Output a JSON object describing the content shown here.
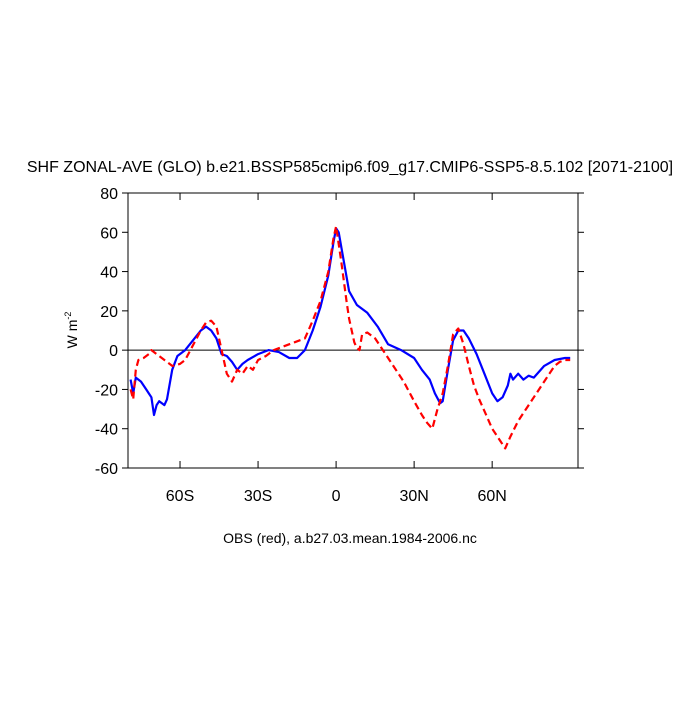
{
  "chart_data": {
    "type": "line",
    "title": "SHF ZONAL-AVE (GLO) b.e21.BSSP585cmip6.f09_g17.CMIP6-SSP5-8.5.102 [2071-2100]",
    "ylabel": {
      "base": "W m",
      "sup": "-2"
    },
    "footer": "OBS (red), a.b27.03.mean.1984-2006.nc",
    "xlim": [
      -80,
      93
    ],
    "ylim": [
      -60,
      80
    ],
    "xticks": [
      {
        "value": -60,
        "label": "60S"
      },
      {
        "value": -30,
        "label": "30S"
      },
      0,
      {
        "value": 30,
        "label": "30N"
      },
      {
        "value": 60,
        "label": "60N"
      }
    ],
    "yticks": [
      -60,
      -40,
      -20,
      0,
      20,
      40,
      60,
      80
    ],
    "hline": 0,
    "series": [
      {
        "color": "#0000ff",
        "dash": false,
        "x": [
          -79,
          -78,
          -77,
          -75,
          -73,
          -72,
          -71,
          -70,
          -69,
          -68,
          -66,
          -65,
          -63,
          -61,
          -58,
          -55,
          -52,
          -50,
          -48,
          -46,
          -44,
          -42,
          -40,
          -38,
          -36,
          -34,
          -30,
          -26,
          -22,
          -18,
          -15,
          -12,
          -9,
          -6,
          -3,
          -1,
          0,
          1,
          3,
          5,
          8,
          12,
          16,
          20,
          25,
          30,
          33,
          36,
          38,
          40,
          41,
          43,
          45,
          47,
          49,
          51,
          54,
          57,
          60,
          62,
          64,
          66,
          67,
          68,
          70,
          72,
          74,
          76,
          80,
          84,
          88,
          90
        ],
        "values": [
          -15,
          -22,
          -14,
          -16,
          -20,
          -22,
          -24,
          -33,
          -28,
          -26,
          -28,
          -25,
          -10,
          -3,
          0,
          5,
          10,
          12,
          10,
          6,
          -2,
          -3,
          -6,
          -10,
          -7,
          -5,
          -2,
          0,
          -1,
          -4,
          -4,
          0,
          10,
          22,
          38,
          55,
          62,
          60,
          45,
          30,
          23,
          19,
          12,
          3,
          0,
          -4,
          -10,
          -15,
          -22,
          -27,
          -26,
          -10,
          5,
          10,
          10,
          6,
          -2,
          -12,
          -22,
          -26,
          -24,
          -18,
          -12,
          -15,
          -12,
          -15,
          -13,
          -14,
          -8,
          -5,
          -4,
          -4
        ]
      },
      {
        "color": "#ff0000",
        "dash": true,
        "x": [
          -79,
          -78,
          -77,
          -76,
          -74,
          -72,
          -71,
          -69,
          -67,
          -65,
          -63,
          -60,
          -58,
          -56,
          -54,
          -52,
          -50,
          -48,
          -46,
          -44,
          -42,
          -40,
          -38,
          -36,
          -34,
          -32,
          -30,
          -27,
          -24,
          -20,
          -16,
          -12,
          -9,
          -6,
          -3,
          -1,
          0,
          2,
          4,
          5,
          7,
          8,
          9,
          10,
          12,
          15,
          18,
          22,
          26,
          30,
          33,
          35,
          37,
          39,
          41,
          43,
          45,
          47,
          49,
          51,
          53,
          55,
          58,
          60,
          63,
          65,
          67,
          70,
          73,
          76,
          79,
          82,
          84,
          86,
          88,
          90
        ],
        "values": [
          -20,
          -25,
          -10,
          -5,
          -4,
          -2,
          0,
          -2,
          -4,
          -6,
          -8,
          -7,
          -5,
          0,
          5,
          10,
          14,
          15,
          12,
          0,
          -12,
          -16,
          -10,
          -12,
          -8,
          -10,
          -5,
          -3,
          0,
          2,
          4,
          6,
          15,
          25,
          40,
          57,
          63,
          45,
          25,
          16,
          4,
          1,
          0,
          8,
          9,
          6,
          0,
          -8,
          -16,
          -26,
          -33,
          -37,
          -40,
          -30,
          -22,
          -8,
          8,
          11,
          3,
          -8,
          -18,
          -25,
          -34,
          -40,
          -46,
          -50,
          -44,
          -36,
          -30,
          -24,
          -18,
          -12,
          -8,
          -6,
          -5,
          -5
        ]
      }
    ]
  }
}
